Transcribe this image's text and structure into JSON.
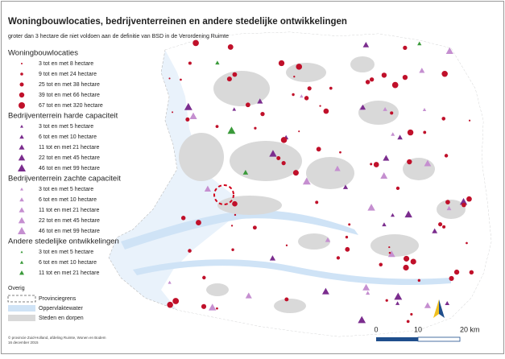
{
  "title": "Woningbouwlocaties, bedrijventerreinen en andere stedelijke ontwikkelingen",
  "subtitle": "groter dan 3 hectare die niet voldoen aan de definitie van BSD in de Verordening Ruimte",
  "legend": {
    "groups": [
      {
        "title": "Woningbouwlocaties",
        "items": [
          "3 tot en met 8 hectare",
          "9 tot en met 24 hectare",
          "25 tot en met 38 hectare",
          "39 tot en met 66 hectare",
          "67 tot en met 320 hectare"
        ]
      },
      {
        "title": "Bedrijventerrein harde capaciteit",
        "items": [
          "3 tot en met 5 hectare",
          "6 tot en met 10 hectare",
          "11 tot en met 21 hectare",
          "22 tot en met 45 hectare",
          "46 tot en met 99 hectare"
        ]
      },
      {
        "title": "Bedrijventerrein zachte capaciteit",
        "items": [
          "3 tot en met 5 hectare",
          "6 tot en met 10 hectare",
          "11 tot en met 21 hectare",
          "22 tot en met 45 hectare",
          "46 tot en met 99 hectare"
        ]
      },
      {
        "title": "Andere stedelijke ontwikkelingen",
        "items": [
          "3  tot en met 5 hectare",
          "6  tot en met 10 hectare",
          "11 tot en met 21 hectare"
        ]
      }
    ],
    "other": {
      "title": "Overig",
      "items": [
        "Provinciegrens",
        "Oppervlaktewater",
        "Steden en dorpen"
      ]
    }
  },
  "scale_bar": {
    "labels": [
      "0",
      "10",
      "20 km"
    ]
  },
  "footer": {
    "lines": [
      "© provincie Zuid-Holland, afdeling Ruimte, Wonen en Bodem",
      "16 december 2015"
    ]
  }
}
